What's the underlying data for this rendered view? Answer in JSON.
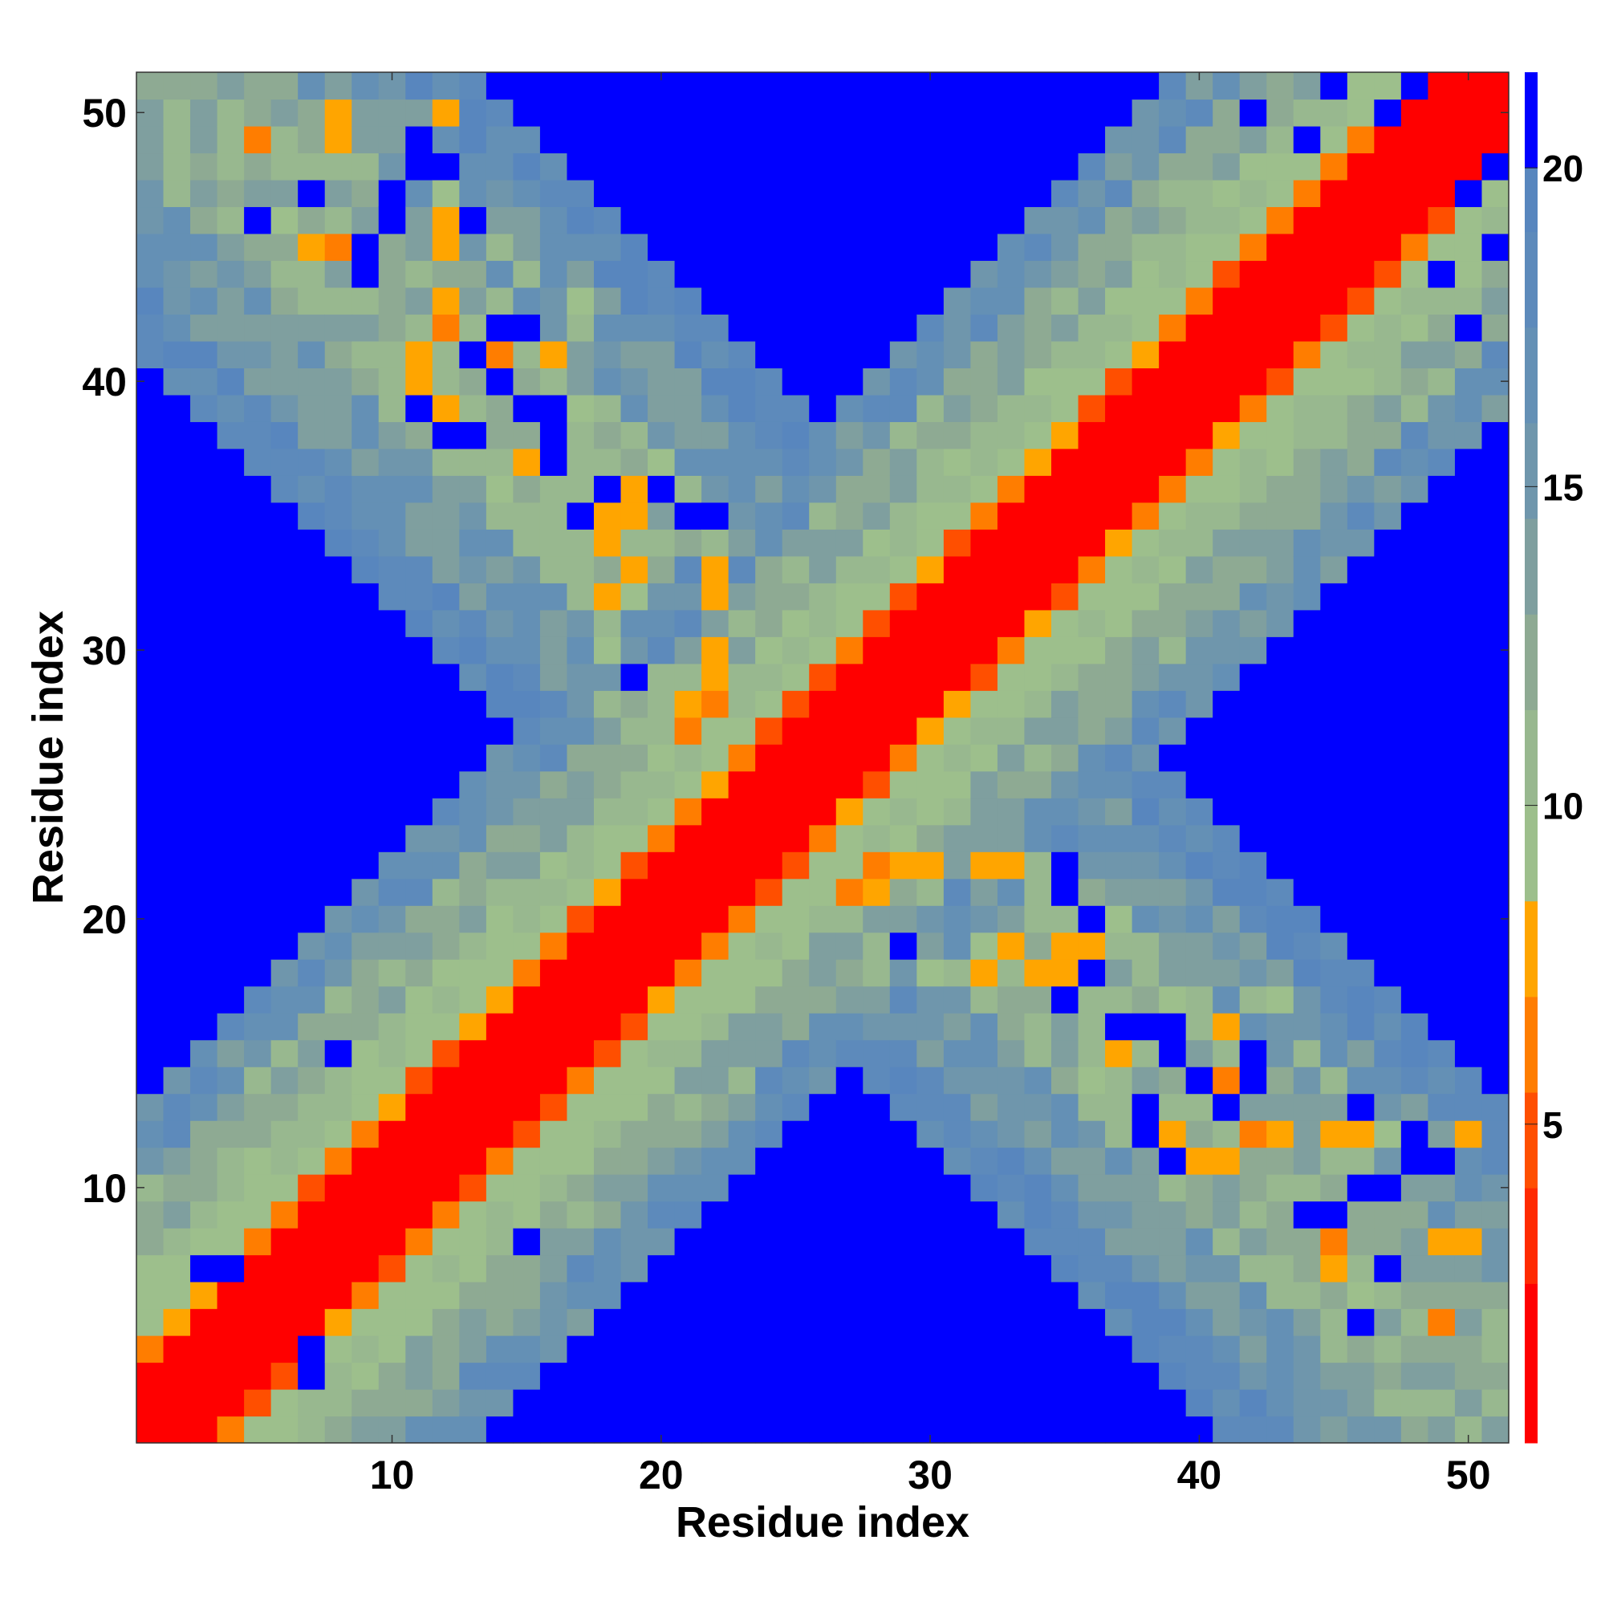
{
  "chart_data": {
    "type": "heatmap",
    "title": "",
    "xlabel": "Residue index",
    "ylabel": "Residue index",
    "n": 51,
    "xlim": [
      0.5,
      51.5
    ],
    "ylim": [
      0.5,
      51.5
    ],
    "x_ticks": [
      10,
      20,
      30,
      40,
      50
    ],
    "y_ticks": [
      10,
      20,
      30,
      40,
      50
    ],
    "colorbar": {
      "ticks": [
        5,
        10,
        15,
        20
      ],
      "range": [
        0.0,
        21.5
      ],
      "note_top": "values above 20 shown in blue",
      "bins": [
        {
          "from": 0.0,
          "to": 2.5,
          "color": "#ff0000"
        },
        {
          "from": 2.5,
          "to": 4.0,
          "color": "#ff2a00"
        },
        {
          "from": 4.0,
          "to": 5.5,
          "color": "#ff4f00"
        },
        {
          "from": 5.5,
          "to": 7.0,
          "color": "#ff7d00"
        },
        {
          "from": 7.0,
          "to": 8.5,
          "color": "#ffa500"
        },
        {
          "from": 8.5,
          "to": 10.0,
          "color": "#9dbf8c"
        },
        {
          "from": 10.0,
          "to": 11.5,
          "color": "#98b88f"
        },
        {
          "from": 11.5,
          "to": 13.0,
          "color": "#8eaa93"
        },
        {
          "from": 13.0,
          "to": 14.5,
          "color": "#7f9f9f"
        },
        {
          "from": 14.5,
          "to": 16.0,
          "color": "#6f96ac"
        },
        {
          "from": 16.0,
          "to": 17.5,
          "color": "#6490b5"
        },
        {
          "from": 17.5,
          "to": 19.0,
          "color": "#5d8abb"
        },
        {
          "from": 19.0,
          "to": 20.0,
          "color": "#5886be"
        },
        {
          "from": 20.0,
          "to": 21.5,
          "color": "#0000ff"
        }
      ]
    },
    "model": "symmetric residue distance map; diagonal band red, near-contacts orange, far region blue (>20)",
    "cross_contacts": [
      [
        44,
        15,
        10.5
      ],
      [
        45,
        14,
        11
      ],
      [
        46,
        13,
        12
      ],
      [
        47,
        12,
        9
      ],
      [
        48,
        12,
        8
      ],
      [
        49,
        11,
        10
      ],
      [
        50,
        12,
        7
      ],
      [
        50,
        8,
        7
      ],
      [
        49,
        5,
        7
      ],
      [
        47,
        5,
        14
      ],
      [
        46,
        6,
        9
      ],
      [
        45,
        7,
        7
      ],
      [
        43,
        12,
        8
      ],
      [
        42,
        12,
        8
      ],
      [
        41,
        11,
        6
      ],
      [
        40,
        11,
        7
      ],
      [
        39,
        12,
        9
      ],
      [
        38,
        13,
        9
      ],
      [
        37,
        14,
        10
      ],
      [
        36,
        14,
        9
      ],
      [
        43,
        17,
        9
      ],
      [
        42,
        17,
        10
      ],
      [
        41,
        16,
        7
      ],
      [
        40,
        16,
        10
      ],
      [
        39,
        17,
        9
      ],
      [
        36,
        19,
        7
      ],
      [
        35,
        18,
        8
      ],
      [
        34,
        18,
        7
      ],
      [
        33,
        19,
        7
      ],
      [
        32,
        19,
        8
      ],
      [
        31,
        18,
        10
      ],
      [
        36,
        20,
        8
      ],
      [
        37,
        20,
        9
      ],
      [
        38,
        19,
        10
      ],
      [
        35,
        21,
        7
      ],
      [
        34,
        22,
        10
      ],
      [
        33,
        22,
        7
      ],
      [
        32,
        22,
        7
      ],
      [
        30,
        22,
        9
      ],
      [
        29,
        22,
        8
      ],
      [
        28,
        21,
        7
      ],
      [
        27,
        22,
        9
      ],
      [
        30,
        18,
        9
      ],
      [
        29,
        19,
        10
      ],
      [
        28,
        18,
        10
      ],
      [
        27,
        20,
        10
      ],
      [
        23,
        28,
        10
      ],
      [
        22,
        30,
        7
      ],
      [
        22,
        28,
        6
      ],
      [
        21,
        27,
        6
      ],
      [
        22,
        33,
        7
      ],
      [
        19,
        32,
        9
      ],
      [
        18,
        32,
        8
      ],
      [
        17,
        35,
        9
      ],
      [
        19,
        35,
        8
      ],
      [
        18,
        36,
        8
      ],
      [
        16,
        38,
        10
      ],
      [
        15,
        37,
        7
      ],
      [
        15,
        42,
        7
      ],
      [
        16,
        41,
        8
      ],
      [
        14,
        41,
        6
      ],
      [
        13,
        41,
        9
      ],
      [
        12,
        42,
        6
      ],
      [
        11,
        41,
        8
      ],
      [
        12,
        39,
        8
      ],
      [
        12,
        45,
        7
      ],
      [
        12,
        46,
        8
      ],
      [
        8,
        45,
        6
      ],
      [
        8,
        49,
        7
      ],
      [
        5,
        49,
        6
      ],
      [
        11,
        48,
        10
      ],
      [
        9,
        47,
        12
      ]
    ],
    "far_blue_cells": [
      [
        3,
        7
      ],
      [
        7,
        4
      ],
      [
        8,
        15
      ],
      [
        17,
        35
      ],
      [
        18,
        36
      ],
      [
        19,
        29
      ],
      [
        20,
        36
      ],
      [
        21,
        35
      ],
      [
        15,
        42
      ],
      [
        12,
        38
      ],
      [
        13,
        38
      ],
      [
        14,
        42
      ],
      [
        15,
        39
      ],
      [
        16,
        39
      ],
      [
        12,
        48
      ],
      [
        10,
        46
      ],
      [
        13,
        46
      ],
      [
        36,
        20
      ],
      [
        35,
        22
      ],
      [
        36,
        18
      ],
      [
        37,
        16
      ],
      [
        38,
        16
      ],
      [
        39,
        16
      ],
      [
        40,
        14
      ],
      [
        39,
        11
      ],
      [
        41,
        13
      ],
      [
        42,
        15
      ],
      [
        45,
        9
      ],
      [
        44,
        9
      ],
      [
        47,
        10
      ],
      [
        48,
        11
      ],
      [
        49,
        11
      ],
      [
        47,
        7
      ],
      [
        46,
        5
      ],
      [
        49,
        44
      ],
      [
        48,
        51
      ],
      [
        50,
        47
      ],
      [
        44,
        49
      ],
      [
        50,
        42
      ],
      [
        51,
        45
      ]
    ]
  }
}
